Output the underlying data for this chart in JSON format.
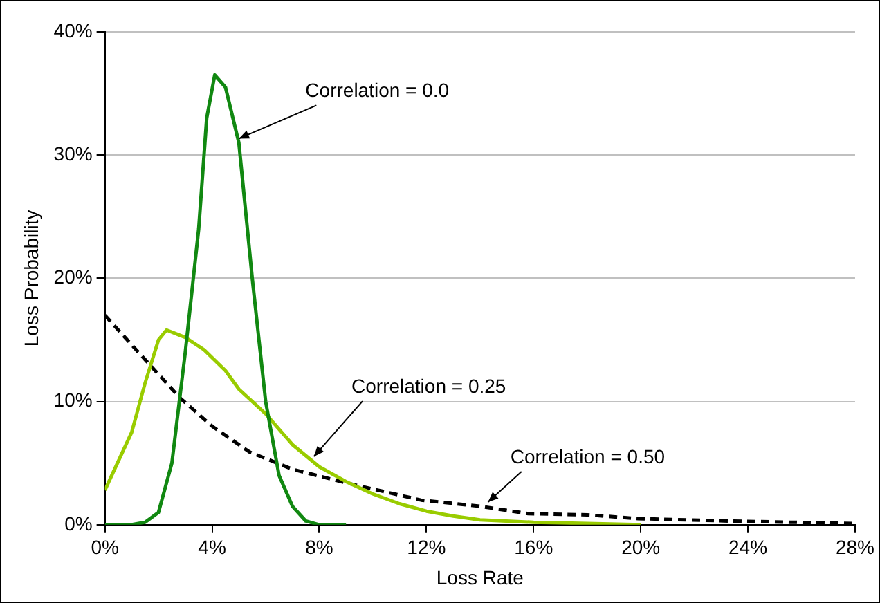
{
  "chart_data": {
    "type": "line",
    "xlabel": "Loss Rate",
    "ylabel": "Loss Probability",
    "xlim": [
      0,
      28
    ],
    "ylim": [
      0,
      40
    ],
    "xticks": [
      {
        "value": 0,
        "label": "0%"
      },
      {
        "value": 4,
        "label": "4%"
      },
      {
        "value": 8,
        "label": "8%"
      },
      {
        "value": 12,
        "label": "12%"
      },
      {
        "value": 16,
        "label": "16%"
      },
      {
        "value": 20,
        "label": "20%"
      },
      {
        "value": 24,
        "label": "24%"
      },
      {
        "value": 28,
        "label": "28%"
      }
    ],
    "yticks": [
      {
        "value": 0,
        "label": "0%"
      },
      {
        "value": 10,
        "label": "10%"
      },
      {
        "value": 20,
        "label": "20%"
      },
      {
        "value": 30,
        "label": "30%"
      },
      {
        "value": 40,
        "label": "40%"
      }
    ],
    "grid": "y",
    "legend": false,
    "marker": "none",
    "series": [
      {
        "color": "#118811",
        "line_style": "solid",
        "x": [
          0,
          1,
          1.5,
          2,
          2.5,
          3,
          3.5,
          3.8,
          4.1,
          4.5,
          5,
          5.5,
          6,
          6.5,
          7,
          7.5,
          8,
          9
        ],
        "values": [
          0,
          0,
          0.2,
          1,
          5,
          14,
          24,
          33,
          36.5,
          35.5,
          31,
          20,
          10,
          4,
          1.5,
          0.3,
          0,
          0
        ]
      },
      {
        "color": "#99cc00",
        "line_style": "solid",
        "x": [
          0,
          1,
          1.5,
          2,
          2.3,
          3,
          3.7,
          4.5,
          5,
          6,
          7,
          8,
          9,
          10,
          11,
          12,
          13,
          14,
          16,
          18,
          20
        ],
        "values": [
          2.8,
          7.5,
          11.5,
          15,
          15.8,
          15.2,
          14.2,
          12.5,
          11,
          9,
          6.5,
          4.7,
          3.5,
          2.5,
          1.7,
          1.1,
          0.7,
          0.4,
          0.2,
          0.1,
          0
        ]
      },
      {
        "color": "#000000",
        "line_style": "dashed",
        "x": [
          0,
          1.5,
          2.8,
          4,
          5.4,
          7,
          9,
          11.8,
          14,
          15.8,
          18,
          19.9,
          23.3,
          28
        ],
        "values": [
          17,
          13.4,
          10.3,
          8,
          5.9,
          4.5,
          3.4,
          2,
          1.5,
          0.9,
          0.8,
          0.5,
          0.3,
          0.1
        ]
      }
    ],
    "annotations": [
      {
        "text": "Correlation = 0.0",
        "x": 5,
        "y": 31
      },
      {
        "text": "Correlation = 0.25",
        "x": 7.8,
        "y": 5.2
      },
      {
        "text": "Correlation = 0.50",
        "x": 14.3,
        "y": 1.5
      }
    ]
  }
}
